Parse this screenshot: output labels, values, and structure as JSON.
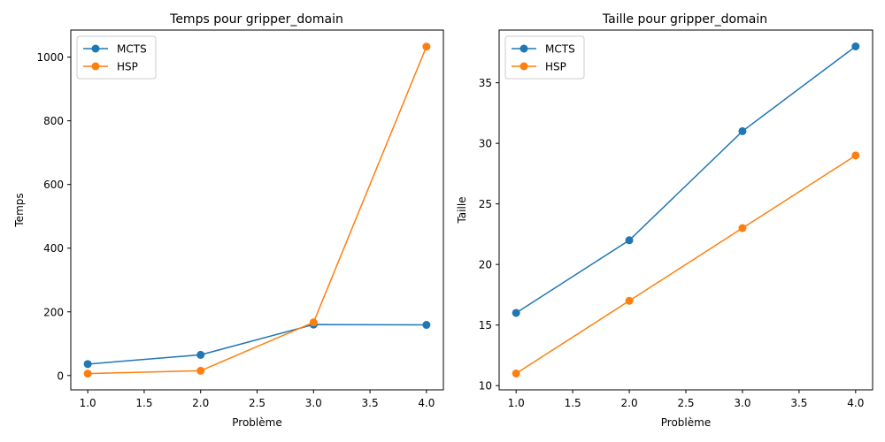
{
  "chart_data": [
    {
      "type": "line",
      "title": "Temps pour gripper_domain",
      "xlabel": "Problème",
      "ylabel": "Temps",
      "x": [
        1,
        2,
        3,
        4
      ],
      "xlim": [
        0.85,
        4.15
      ],
      "ylim": [
        -45,
        1085
      ],
      "xticks": [
        "1.0",
        "1.5",
        "2.0",
        "2.5",
        "3.0",
        "3.5",
        "4.0"
      ],
      "yticks": [
        "0",
        "200",
        "400",
        "600",
        "800",
        "1000"
      ],
      "series": [
        {
          "name": "MCTS",
          "color": "#1f77b4",
          "values": [
            36,
            65,
            160,
            159
          ]
        },
        {
          "name": "HSP",
          "color": "#ff7f0e",
          "values": [
            6,
            15,
            167,
            1033
          ]
        }
      ],
      "legend": "top-left",
      "grid": false
    },
    {
      "type": "line",
      "title": "Taille pour gripper_domain",
      "xlabel": "Problème",
      "ylabel": "Taille",
      "x": [
        1,
        2,
        3,
        4
      ],
      "xlim": [
        0.85,
        4.15
      ],
      "ylim": [
        9.65,
        39.35
      ],
      "xticks": [
        "1.0",
        "1.5",
        "2.0",
        "2.5",
        "3.0",
        "3.5",
        "4.0"
      ],
      "yticks": [
        "10",
        "15",
        "20",
        "25",
        "30",
        "35"
      ],
      "series": [
        {
          "name": "MCTS",
          "color": "#1f77b4",
          "values": [
            16,
            22,
            31,
            38
          ]
        },
        {
          "name": "HSP",
          "color": "#ff7f0e",
          "values": [
            11,
            17,
            23,
            29
          ]
        }
      ],
      "legend": "top-left",
      "grid": false
    }
  ]
}
